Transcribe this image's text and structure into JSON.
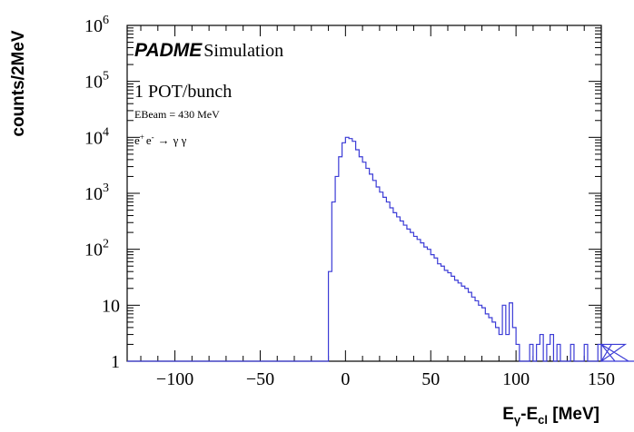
{
  "chart_data": {
    "type": "histogram",
    "xlabel": {
      "base": "E",
      "sub1": "γ",
      "mid": "-E",
      "sub2": "cl",
      "unit": " [MeV]"
    },
    "ylabel": "counts/2MeV",
    "y_scale": "log",
    "xlim": [
      -128,
      150
    ],
    "ylim": [
      1,
      1000000
    ],
    "bin_width": 2,
    "x_ticks": [
      -100,
      -50,
      0,
      50,
      100,
      150
    ],
    "x_tick_labels": [
      "−100",
      "−50",
      "0",
      "50",
      "100",
      "150"
    ],
    "y_ticks": [
      {
        "value": 1,
        "base": "1",
        "exp": ""
      },
      {
        "value": 10,
        "base": "10",
        "exp": ""
      },
      {
        "value": 100,
        "base": "10",
        "exp": "2"
      },
      {
        "value": 1000,
        "base": "10",
        "exp": "3"
      },
      {
        "value": 10000,
        "base": "10",
        "exp": "4"
      },
      {
        "value": 100000,
        "base": "10",
        "exp": "5"
      },
      {
        "value": 1000000,
        "base": "10",
        "exp": "6"
      }
    ],
    "annotations": {
      "experiment": "PADME",
      "simulation": "Simulation",
      "pot": "1 POT/bunch",
      "ebeam": "EBeam = 430 MeV",
      "process": {
        "e1": "e",
        "e1_sup": "+",
        "e2": "e",
        "e2_sup": "-",
        "arrow": "→",
        "final": "γ γ"
      }
    },
    "series": [
      {
        "color": "#3b3bd6",
        "bin_edges_start": -12,
        "counts": [
          1,
          40,
          700,
          2000,
          4500,
          8000,
          10000,
          9500,
          8500,
          6000,
          4500,
          3600,
          2800,
          2200,
          1700,
          1300,
          1050,
          850,
          700,
          550,
          450,
          380,
          320,
          270,
          230,
          200,
          170,
          150,
          130,
          110,
          100,
          80,
          70,
          55,
          50,
          42,
          38,
          33,
          28,
          25,
          22,
          20,
          17,
          14,
          12,
          10,
          9,
          7,
          6,
          5,
          4,
          3,
          10,
          3,
          11,
          4,
          2,
          1,
          1,
          1,
          2,
          1,
          2,
          3,
          1,
          2,
          3,
          1,
          2,
          1,
          1,
          1,
          2,
          1,
          1,
          1,
          2,
          1,
          1,
          1,
          2,
          1,
          1,
          1,
          2,
          1,
          1,
          1,
          2,
          1,
          1,
          1,
          1,
          1,
          1,
          1,
          1,
          1,
          1,
          1,
          1,
          1,
          1,
          1,
          1,
          1,
          1,
          1,
          1,
          1,
          1
        ]
      }
    ]
  }
}
